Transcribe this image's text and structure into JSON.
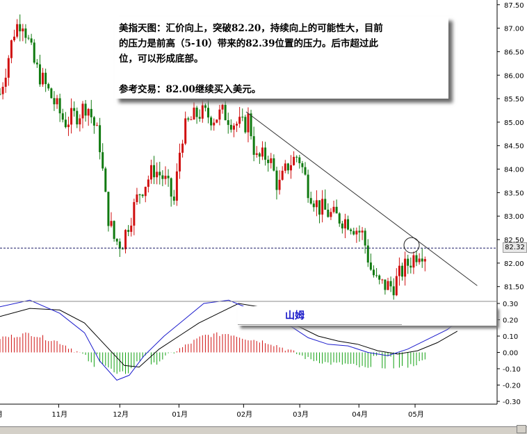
{
  "annotation": {
    "line1": "美指天图：汇价向上，突破82.20，持续向上的可能性大，目前",
    "line2": "的压力是前高（5-10）带来的82.39位置的压力。后市超过此",
    "line3": "位，可以形成底部。",
    "line4": "参考交易：82.00继续买入美元。"
  },
  "author_label": "山姆",
  "current_price_label": "82.32",
  "colors": {
    "up_candle": "#d01010",
    "down_candle": "#107a10",
    "macd_line": "#1a1acc",
    "signal_line": "#000000",
    "hist_pos": "#d01010",
    "hist_neg": "#10a010",
    "dashed_price": "#1a1a66",
    "axis": "#000000"
  },
  "chart_data": [
    {
      "type": "candlestick",
      "yticks": [
        "87.50",
        "87.00",
        "86.50",
        "86.00",
        "85.50",
        "85.00",
        "84.50",
        "84.00",
        "83.50",
        "83.00",
        "82.50",
        "82.00",
        "81.50"
      ],
      "ylim": [
        81.2,
        87.6
      ],
      "months": [
        "11月",
        "12月",
        "01月",
        "02月",
        "03月",
        "04月",
        "05月"
      ],
      "current_price": 82.32,
      "trendline": [
        [
          0.495,
          85.22
        ],
        [
          0.96,
          81.52
        ]
      ],
      "circle_center": [
        0.828,
        82.38
      ],
      "anchors": [
        [
          0,
          85.6
        ],
        [
          0.03,
          87.0
        ],
        [
          0.045,
          87.2
        ],
        [
          0.07,
          86.2
        ],
        [
          0.1,
          85.6
        ],
        [
          0.13,
          85.0
        ],
        [
          0.16,
          85.2
        ],
        [
          0.175,
          85.4
        ],
        [
          0.2,
          84.6
        ],
        [
          0.215,
          83.1
        ],
        [
          0.23,
          82.5
        ],
        [
          0.245,
          82.4
        ],
        [
          0.26,
          82.9
        ],
        [
          0.28,
          83.5
        ],
        [
          0.31,
          84.0
        ],
        [
          0.33,
          83.8
        ],
        [
          0.35,
          83.3
        ],
        [
          0.365,
          84.7
        ],
        [
          0.38,
          85.0
        ],
        [
          0.4,
          85.2
        ],
        [
          0.43,
          85.1
        ],
        [
          0.45,
          85.2
        ],
        [
          0.47,
          85.0
        ],
        [
          0.49,
          84.9
        ],
        [
          0.5,
          85.1
        ],
        [
          0.515,
          84.2
        ],
        [
          0.54,
          84.3
        ],
        [
          0.56,
          83.6
        ],
        [
          0.58,
          84.1
        ],
        [
          0.6,
          84.3
        ],
        [
          0.62,
          83.6
        ],
        [
          0.64,
          83.2
        ],
        [
          0.67,
          83.0
        ],
        [
          0.7,
          82.9
        ],
        [
          0.73,
          82.6
        ],
        [
          0.745,
          81.9
        ],
        [
          0.76,
          81.55
        ],
        [
          0.79,
          81.5
        ],
        [
          0.81,
          81.85
        ],
        [
          0.83,
          82.1
        ],
        [
          0.845,
          82.3
        ],
        [
          0.855,
          82.2
        ]
      ]
    },
    {
      "type": "macd",
      "yticks": [
        "0.30",
        "0.20",
        "0.10",
        "0.00",
        "-0.10",
        "-0.20",
        "-0.30"
      ],
      "ylim": [
        -0.3,
        0.3
      ],
      "macd_points": [
        [
          0,
          0.28
        ],
        [
          0.06,
          0.32
        ],
        [
          0.12,
          0.24
        ],
        [
          0.17,
          0.12
        ],
        [
          0.2,
          -0.05
        ],
        [
          0.235,
          -0.17
        ],
        [
          0.26,
          -0.14
        ],
        [
          0.29,
          -0.02
        ],
        [
          0.33,
          0.1
        ],
        [
          0.37,
          0.2
        ],
        [
          0.41,
          0.3
        ],
        [
          0.46,
          0.32
        ],
        [
          0.5,
          0.27
        ],
        [
          0.54,
          0.24
        ],
        [
          0.58,
          0.17
        ],
        [
          0.62,
          0.09
        ],
        [
          0.66,
          0.05
        ],
        [
          0.7,
          0.04
        ],
        [
          0.74,
          0.0
        ],
        [
          0.78,
          -0.02
        ],
        [
          0.82,
          0.02
        ],
        [
          0.86,
          0.08
        ],
        [
          0.9,
          0.14
        ],
        [
          0.92,
          0.19
        ]
      ],
      "signal_points": [
        [
          0,
          0.22
        ],
        [
          0.06,
          0.27
        ],
        [
          0.12,
          0.26
        ],
        [
          0.17,
          0.18
        ],
        [
          0.21,
          0.05
        ],
        [
          0.25,
          -0.08
        ],
        [
          0.28,
          -0.09
        ],
        [
          0.32,
          0.02
        ],
        [
          0.36,
          0.1
        ],
        [
          0.4,
          0.18
        ],
        [
          0.44,
          0.24
        ],
        [
          0.48,
          0.3
        ],
        [
          0.52,
          0.28
        ],
        [
          0.56,
          0.23
        ],
        [
          0.6,
          0.16
        ],
        [
          0.64,
          0.1
        ],
        [
          0.68,
          0.07
        ],
        [
          0.72,
          0.05
        ],
        [
          0.76,
          0.01
        ],
        [
          0.8,
          -0.01
        ],
        [
          0.84,
          0.01
        ],
        [
          0.88,
          0.06
        ],
        [
          0.92,
          0.13
        ]
      ]
    }
  ]
}
